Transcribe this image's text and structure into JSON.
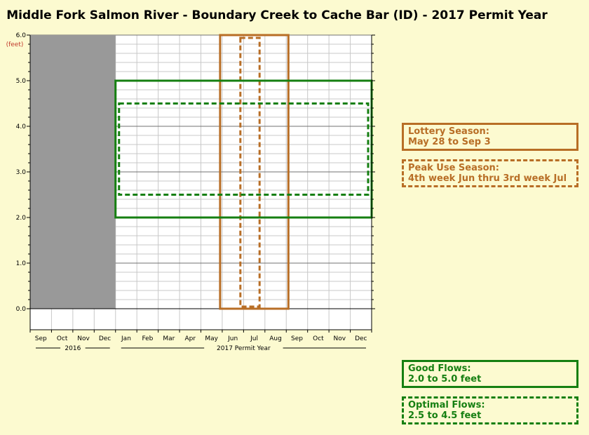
{
  "chart_data": {
    "type": "area",
    "title": "Middle Fork Salmon River - Boundary Creek to Cache Bar (ID) - 2017 Permit Year",
    "y_unit_label": "(feet)",
    "ylim": [
      0,
      6
    ],
    "y_ticks": [
      "0.0",
      "1.0",
      "2.0",
      "3.0",
      "4.0",
      "5.0",
      "6.0"
    ],
    "x_months": [
      "Sep",
      "Oct",
      "Nov",
      "Dec",
      "Jan",
      "Feb",
      "Mar",
      "Apr",
      "May",
      "Jun",
      "Jul",
      "Aug",
      "Sep",
      "Oct",
      "Nov",
      "Dec"
    ],
    "x_groups": [
      {
        "label": "2016",
        "from_month": 0,
        "to_month": 4
      },
      {
        "label": "2017 Permit Year",
        "from_month": 4,
        "to_month": 16
      }
    ],
    "shaded_prior_year": {
      "from_month": 0,
      "to_month": 4
    },
    "grid": true,
    "series": [
      {
        "name": "Lottery Season",
        "kind": "date-range",
        "start": "May 28",
        "end": "Sep 3",
        "x_start": 8.9,
        "x_end": 12.1,
        "y_range": [
          0,
          6
        ],
        "style": "solid",
        "color": "#b86e26"
      },
      {
        "name": "Peak Use Season",
        "kind": "date-range",
        "start": "4th week Jun",
        "end": "3rd week Jul",
        "x_start": 9.85,
        "x_end": 10.75,
        "y_range": [
          0,
          6
        ],
        "style": "dashed",
        "color": "#b86e26"
      },
      {
        "name": "Good Flows",
        "kind": "flow-range",
        "y_low": 2.0,
        "y_high": 5.0,
        "x_start": 4,
        "x_end": 16,
        "style": "solid",
        "color": "#157f11"
      },
      {
        "name": "Optimal Flows",
        "kind": "flow-range",
        "y_low": 2.5,
        "y_high": 4.5,
        "x_start": 4,
        "x_end": 16,
        "style": "dashed",
        "color": "#157f11"
      }
    ]
  },
  "legend": {
    "lottery": {
      "line1": "Lottery Season:",
      "line2": "May 28 to Sep 3"
    },
    "peak": {
      "line1": "Peak Use Season:",
      "line2": "4th week Jun thru 3rd week Jul"
    },
    "good": {
      "line1": "Good Flows:",
      "line2": "2.0 to 5.0 feet"
    },
    "optimal": {
      "line1": "Optimal Flows:",
      "line2": "2.5 to 4.5 feet"
    }
  },
  "colors": {
    "background": "#fcfad0",
    "season": "#b86e26",
    "flow": "#157f11",
    "prior_year_shade": "#999999",
    "unit_label": "#c0392b"
  }
}
